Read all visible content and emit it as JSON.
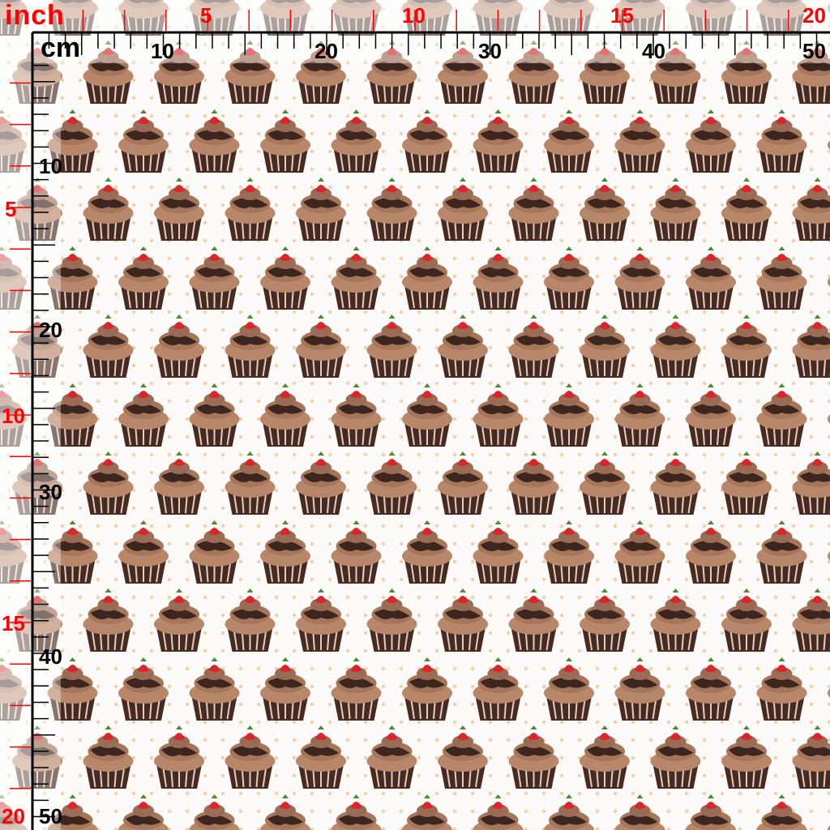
{
  "rulers": {
    "inch_unit": "inch",
    "cm_unit": "cm",
    "inch_color": "#ff0000",
    "cm_color": "#000000",
    "top_inch_labels": [
      "5",
      "10",
      "15",
      "20"
    ],
    "top_cm_labels": [
      "10",
      "20",
      "30",
      "40",
      "50"
    ],
    "left_inch_labels": [
      "5",
      "10",
      "15",
      "20"
    ],
    "left_cm_labels": [
      "10",
      "20",
      "30",
      "40",
      "50"
    ]
  },
  "fabric": {
    "motif": "chocolate cupcake with strawberry",
    "background_color": "#fbfaf8",
    "dot_color": "#f3cfa8"
  }
}
